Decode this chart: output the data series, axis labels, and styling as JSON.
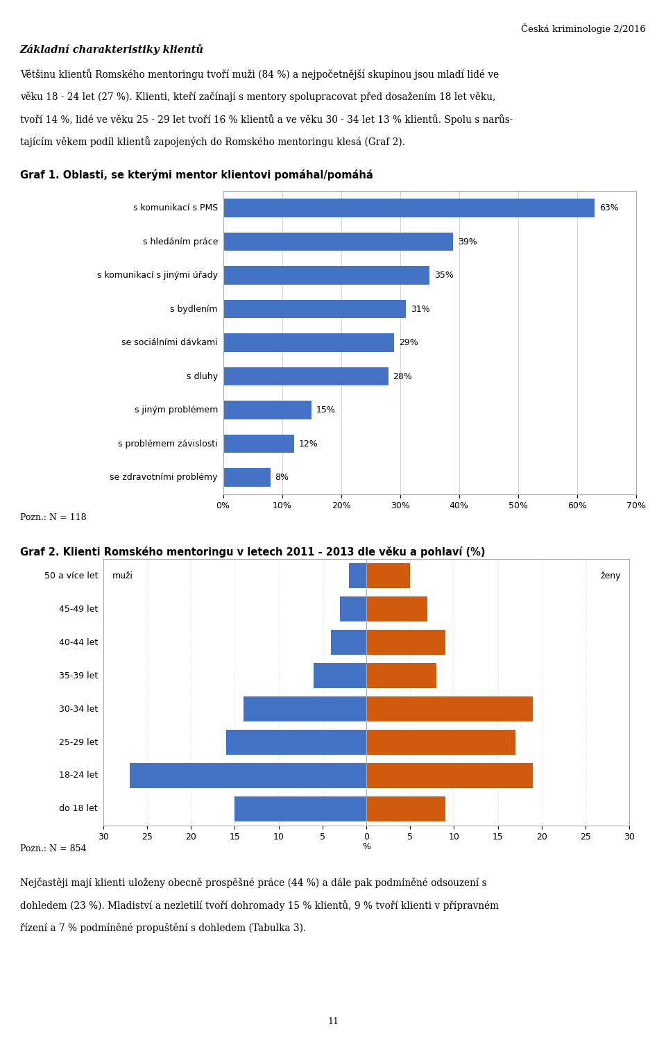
{
  "header_right": "Česká kriminologie 2/2016",
  "section_title": "Základní charakteristiky klientů",
  "intro_text": "Většinu klientů Romského mentoringu tvoří muži (84 %) a nejpočetnější skupinou jsou mladí lidé ve\nvěku 18 - 24 let (27 %). Klienti, kteří začínají s mentory spolupracovat před dosažením 18 let věku,\ntvoří 14 %, lidé ve věku 25 - 29 let tvoří 16 % klientů a ve věku 30 - 34 let 13 % klientů. Spolu s narůs-\ntajícím věkem podíl klientů zapojených do Romského mentoringu klesá (Graf 2).",
  "graf1_title": "Graf 1. Oblasti, se kterými mentor klientovi pomáhal/pomáhá",
  "graf1_categories": [
    "s komunikací s PMS",
    "s hledáním práce",
    "s komunikací s jinými úřady",
    "s bydlením",
    "se sociálními dávkami",
    "s dluhy",
    "s jiným problémem",
    "s problémem závislosti",
    "se zdravotními problémy"
  ],
  "graf1_values": [
    63,
    39,
    35,
    31,
    29,
    28,
    15,
    12,
    8
  ],
  "graf1_bar_color": "#4472C4",
  "graf1_xlim": [
    0,
    70
  ],
  "graf1_xticks": [
    0,
    10,
    20,
    30,
    40,
    50,
    60,
    70
  ],
  "graf1_xtick_labels": [
    "0%",
    "10%",
    "20%",
    "30%",
    "40%",
    "50%",
    "60%",
    "70%"
  ],
  "graf1_note": "Pozn.: N = 118",
  "graf2_title": "Graf 2. Klienti Romského mentoringu v letech 2011 - 2013 dle věku a pohlaví (%)",
  "graf2_age_groups": [
    "50 a více let",
    "45-49 let",
    "40-44 let",
    "35-39 let",
    "30-34 let",
    "25-29 let",
    "18-24 let",
    "do 18 let"
  ],
  "graf2_muzi": [
    2,
    3,
    4,
    6,
    14,
    16,
    27,
    15
  ],
  "graf2_zeny": [
    5,
    7,
    9,
    8,
    19,
    17,
    19,
    9
  ],
  "graf2_muzi_color": "#4472C4",
  "graf2_zeny_color": "#D05A10",
  "graf2_xlim": 30,
  "graf2_xlabel": "%",
  "graf2_note": "Pozn.: N = 854",
  "footer_text": "Nejčastěji mají klienti uloženy obecně prospěšné práce (44 %) a dále pak podmíněné odsouzení s\ndohledem (23 %). Mladiství a nezletilí tvoří dohromady 15 % klientů, 9 % tvoří klienti v přípravném\nřízení a 7 % podmíněné propuštění s dohledem (Tabulka 3).",
  "page_number": "11",
  "background_color": "#ffffff",
  "text_color": "#000000",
  "grid_color": "#cccccc",
  "border_color": "#aaaaaa"
}
